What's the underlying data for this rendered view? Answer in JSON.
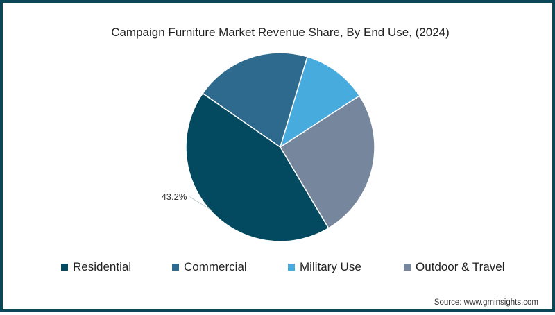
{
  "title": "Campaign Furniture Market Revenue Share, By End Use, (2024)",
  "source": "Source: www.gminsights.com",
  "colors": {
    "frame_border": "#0e4659",
    "Residential": "#034a60",
    "Commercial": "#2d6a8d",
    "Military Use": "#47abde",
    "Outdoor & Travel": "#76879d"
  },
  "legend": [
    {
      "label": "Residential",
      "color": "#034a60"
    },
    {
      "label": "Commercial",
      "color": "#2d6a8d"
    },
    {
      "label": "Military Use",
      "color": "#47abde"
    },
    {
      "label": "Outdoor & Travel",
      "color": "#76879d"
    }
  ],
  "data_label": "43.2%",
  "chart_data": {
    "type": "pie",
    "title": "Campaign Furniture Market Revenue Share, By End Use, (2024)",
    "categories": [
      "Residential",
      "Commercial",
      "Military Use",
      "Outdoor & Travel"
    ],
    "values": [
      43.2,
      20.0,
      11.2,
      25.6
    ],
    "unit": "%",
    "labels_shown": {
      "Residential": "43.2%"
    },
    "legend_position": "bottom",
    "start_angle_deg_clockwise_from_top": 149.2,
    "colors": [
      "#034a60",
      "#2d6a8d",
      "#47abde",
      "#76879d"
    ]
  }
}
